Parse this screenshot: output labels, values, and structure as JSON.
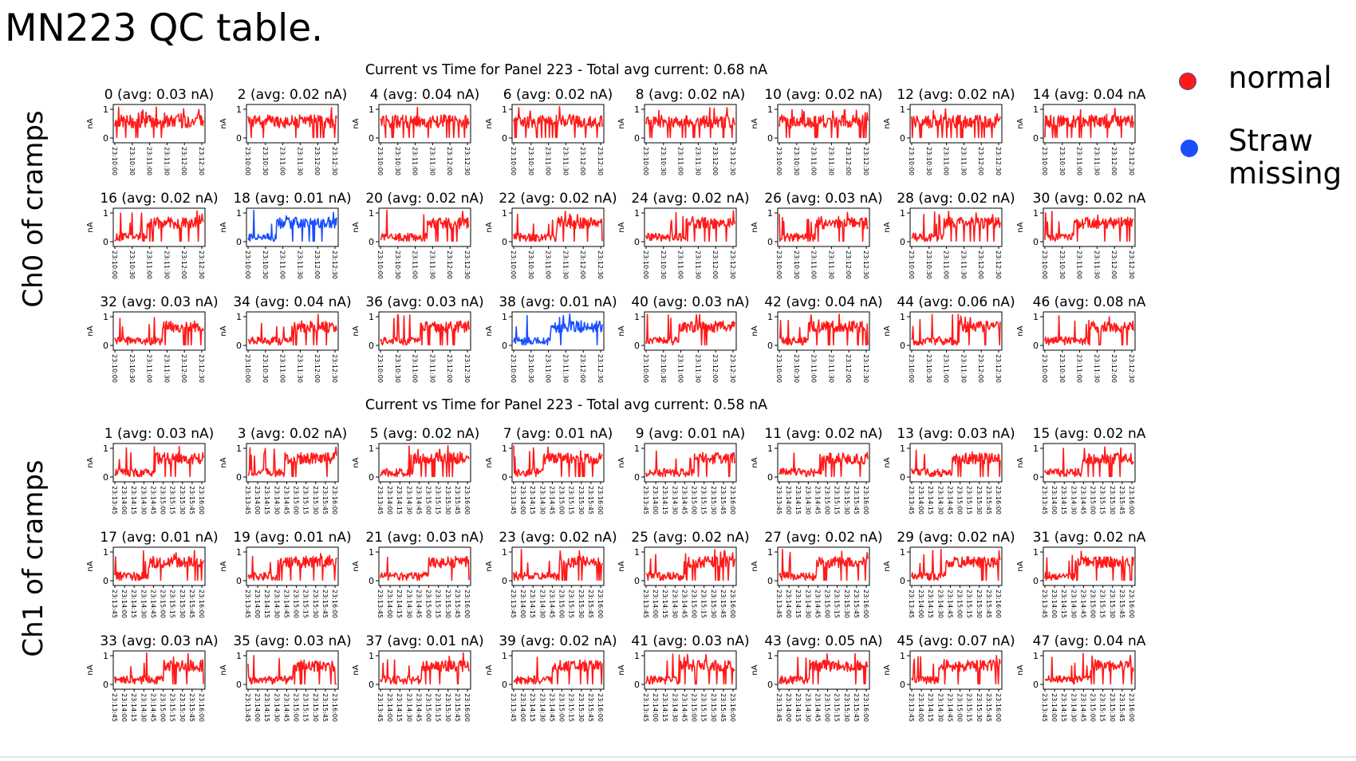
{
  "slide": {
    "title": "MN223 QC table."
  },
  "legend": [
    {
      "label": "normal",
      "color": "#ff1a1a"
    },
    {
      "label": "Straw\nmissing",
      "color": "#1a4fff"
    }
  ],
  "groups": [
    {
      "label": "Ch0 of cramps",
      "panel_title": "Current vs Time for Panel 223 - Total avg current: 0.68 nA",
      "x_ticks": [
        "23:10:00",
        "23:10:30",
        "23:11:00",
        "23:11:30",
        "23:12:00",
        "23:12:30"
      ]
    },
    {
      "label": "Ch1 of cramps",
      "panel_title": "Current vs Time for Panel 223 - Total avg current: 0.58 nA",
      "x_ticks": [
        "23:13:45",
        "23:14:00",
        "23:14:15",
        "23:14:30",
        "23:14:45",
        "23:15:00",
        "23:15:15",
        "23:15:30",
        "23:15:45",
        "23:16:00"
      ]
    }
  ],
  "chart_data": {
    "type": "line",
    "title": "Current vs Time for Panel 223",
    "ylabel": "nA",
    "ylim": [
      0,
      1
    ],
    "y_ticks": [
      "0",
      "1"
    ],
    "series_colors": {
      "normal": "#ff1a1a",
      "missing": "#1a4fff"
    },
    "subplots": [
      {
        "group": 0,
        "row": 0,
        "col": 0,
        "title": "0 (avg: 0.03 nA)",
        "status": "normal"
      },
      {
        "group": 0,
        "row": 0,
        "col": 1,
        "title": "2 (avg: 0.02 nA)",
        "status": "normal"
      },
      {
        "group": 0,
        "row": 0,
        "col": 2,
        "title": "4 (avg: 0.04 nA)",
        "status": "normal"
      },
      {
        "group": 0,
        "row": 0,
        "col": 3,
        "title": "6 (avg: 0.02 nA)",
        "status": "normal"
      },
      {
        "group": 0,
        "row": 0,
        "col": 4,
        "title": "8 (avg: 0.02 nA)",
        "status": "normal"
      },
      {
        "group": 0,
        "row": 0,
        "col": 5,
        "title": "10 (avg: 0.02 nA)",
        "status": "normal"
      },
      {
        "group": 0,
        "row": 0,
        "col": 6,
        "title": "12 (avg: 0.02 nA)",
        "status": "normal"
      },
      {
        "group": 0,
        "row": 0,
        "col": 7,
        "title": "14 (avg: 0.04 nA",
        "status": "normal"
      },
      {
        "group": 0,
        "row": 1,
        "col": 0,
        "title": "16 (avg: 0.02 nA)",
        "status": "normal"
      },
      {
        "group": 0,
        "row": 1,
        "col": 1,
        "title": "18 (avg: 0.01 nA)",
        "status": "missing"
      },
      {
        "group": 0,
        "row": 1,
        "col": 2,
        "title": "20 (avg: 0.02 nA)",
        "status": "normal"
      },
      {
        "group": 0,
        "row": 1,
        "col": 3,
        "title": "22 (avg: 0.02 nA)",
        "status": "normal"
      },
      {
        "group": 0,
        "row": 1,
        "col": 4,
        "title": "24 (avg: 0.02 nA)",
        "status": "normal"
      },
      {
        "group": 0,
        "row": 1,
        "col": 5,
        "title": "26 (avg: 0.03 nA)",
        "status": "normal"
      },
      {
        "group": 0,
        "row": 1,
        "col": 6,
        "title": "28 (avg: 0.02 nA)",
        "status": "normal"
      },
      {
        "group": 0,
        "row": 1,
        "col": 7,
        "title": "30 (avg: 0.02 nA",
        "status": "normal"
      },
      {
        "group": 0,
        "row": 2,
        "col": 0,
        "title": "32 (avg: 0.03 nA)",
        "status": "normal"
      },
      {
        "group": 0,
        "row": 2,
        "col": 1,
        "title": "34 (avg: 0.04 nA)",
        "status": "normal"
      },
      {
        "group": 0,
        "row": 2,
        "col": 2,
        "title": "36 (avg: 0.03 nA)",
        "status": "normal"
      },
      {
        "group": 0,
        "row": 2,
        "col": 3,
        "title": "38 (avg: 0.01 nA)",
        "status": "missing"
      },
      {
        "group": 0,
        "row": 2,
        "col": 4,
        "title": "40 (avg: 0.03 nA)",
        "status": "normal"
      },
      {
        "group": 0,
        "row": 2,
        "col": 5,
        "title": "42 (avg: 0.04 nA)",
        "status": "normal"
      },
      {
        "group": 0,
        "row": 2,
        "col": 6,
        "title": "44 (avg: 0.06 nA)",
        "status": "normal"
      },
      {
        "group": 0,
        "row": 2,
        "col": 7,
        "title": "46 (avg: 0.08 nA",
        "status": "normal"
      },
      {
        "group": 1,
        "row": 0,
        "col": 0,
        "title": "1 (avg: 0.03 nA)",
        "status": "normal"
      },
      {
        "group": 1,
        "row": 0,
        "col": 1,
        "title": "3 (avg: 0.02 nA)",
        "status": "normal"
      },
      {
        "group": 1,
        "row": 0,
        "col": 2,
        "title": "5 (avg: 0.02 nA)",
        "status": "normal"
      },
      {
        "group": 1,
        "row": 0,
        "col": 3,
        "title": "7 (avg: 0.01 nA)",
        "status": "normal"
      },
      {
        "group": 1,
        "row": 0,
        "col": 4,
        "title": "9 (avg: 0.01 nA)",
        "status": "normal"
      },
      {
        "group": 1,
        "row": 0,
        "col": 5,
        "title": "11 (avg: 0.02 nA)",
        "status": "normal"
      },
      {
        "group": 1,
        "row": 0,
        "col": 6,
        "title": "13 (avg: 0.03 nA)",
        "status": "normal"
      },
      {
        "group": 1,
        "row": 0,
        "col": 7,
        "title": "15 (avg: 0.02 nA",
        "status": "normal"
      },
      {
        "group": 1,
        "row": 1,
        "col": 0,
        "title": "17 (avg: 0.01 nA)",
        "status": "normal"
      },
      {
        "group": 1,
        "row": 1,
        "col": 1,
        "title": "19 (avg: 0.01 nA)",
        "status": "normal"
      },
      {
        "group": 1,
        "row": 1,
        "col": 2,
        "title": "21 (avg: 0.03 nA)",
        "status": "normal"
      },
      {
        "group": 1,
        "row": 1,
        "col": 3,
        "title": "23 (avg: 0.02 nA)",
        "status": "normal"
      },
      {
        "group": 1,
        "row": 1,
        "col": 4,
        "title": "25 (avg: 0.02 nA)",
        "status": "normal"
      },
      {
        "group": 1,
        "row": 1,
        "col": 5,
        "title": "27 (avg: 0.02 nA)",
        "status": "normal"
      },
      {
        "group": 1,
        "row": 1,
        "col": 6,
        "title": "29 (avg: 0.02 nA)",
        "status": "normal"
      },
      {
        "group": 1,
        "row": 1,
        "col": 7,
        "title": "31 (avg: 0.02 nA",
        "status": "normal"
      },
      {
        "group": 1,
        "row": 2,
        "col": 0,
        "title": "33 (avg: 0.03 nA)",
        "status": "normal"
      },
      {
        "group": 1,
        "row": 2,
        "col": 1,
        "title": "35 (avg: 0.03 nA)",
        "status": "normal"
      },
      {
        "group": 1,
        "row": 2,
        "col": 2,
        "title": "37 (avg: 0.01 nA)",
        "status": "normal"
      },
      {
        "group": 1,
        "row": 2,
        "col": 3,
        "title": "39 (avg: 0.02 nA)",
        "status": "normal"
      },
      {
        "group": 1,
        "row": 2,
        "col": 4,
        "title": "41 (avg: 0.03 nA)",
        "status": "normal"
      },
      {
        "group": 1,
        "row": 2,
        "col": 5,
        "title": "43 (avg: 0.05 nA)",
        "status": "normal"
      },
      {
        "group": 1,
        "row": 2,
        "col": 6,
        "title": "45 (avg: 0.07 nA)",
        "status": "normal"
      },
      {
        "group": 1,
        "row": 2,
        "col": 7,
        "title": "47 (avg: 0.04 nA",
        "status": "normal"
      }
    ]
  }
}
